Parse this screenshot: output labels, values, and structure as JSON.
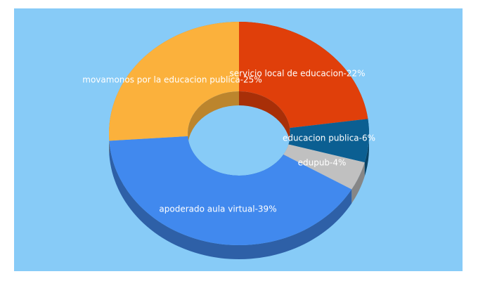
{
  "chart_data": {
    "type": "donut3d",
    "categories": [
      "servicio local de educacion-22%",
      "educacion publica-6%",
      "edupub-4%",
      "apoderado aula virtual-39%",
      "movamonos por la educacion publica-25%"
    ],
    "values": [
      22,
      6,
      4,
      39,
      25
    ],
    "colors": [
      "#e03f0a",
      "#0b5f92",
      "#c0c0c0",
      "#4189ee",
      "#fbb13c"
    ]
  }
}
